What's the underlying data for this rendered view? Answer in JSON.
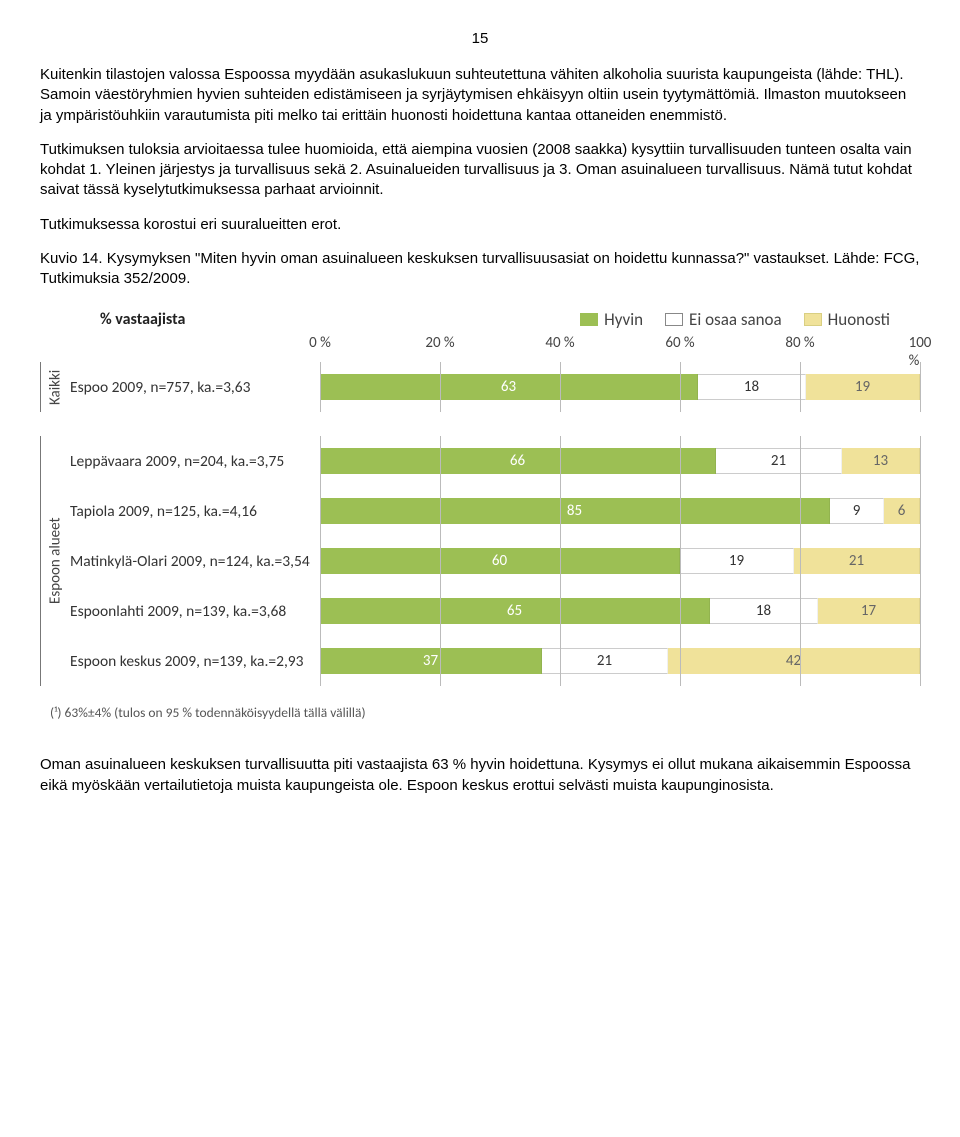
{
  "page_number": "15",
  "paragraphs": {
    "p1": "Kuitenkin tilastojen valossa Espoossa myydään asukaslukuun suhteutettuna vähiten alkoholia suurista kaupungeista (lähde: THL). Samoin väestöryhmien hyvien suhteiden edistämiseen ja syrjäytymisen ehkäisyyn oltiin usein tyytymättömiä. Ilmaston muutokseen ja ympäristöuhkiin varautumista piti melko tai erittäin huonosti hoidettuna kantaa ottaneiden enemmistö.",
    "p2": "Tutkimuksen tuloksia arvioitaessa tulee huomioida, että aiempina vuosien (2008 saakka) kysyttiin turvallisuuden tunteen osalta vain kohdat 1. Yleinen järjestys ja turvallisuus sekä 2. Asuinalueiden turvallisuus ja 3. Oman asuinalueen turvallisuus. Nämä tutut kohdat saivat tässä kyselytutkimuksessa parhaat arvioinnit.",
    "p3": "Tutkimuksessa korostui eri suuralueitten erot.",
    "p4": "Kuvio 14. Kysymyksen \"Miten hyvin oman asuinalueen keskuksen turvallisuusasiat on hoidettu kunnassa?\" vastaukset. Lähde: FCG, Tutkimuksia 352/2009.",
    "p5": "Oman asuinalueen keskuksen turvallisuutta piti vastaajista 63 % hyvin hoidettuna. Kysymys ei ollut mukana aikaisemmin Espoossa eikä myöskään vertailutietoja muista kaupungeista ole. Espoon keskus erottui selvästi muista kaupunginosista."
  },
  "chart": {
    "type": "stacked-bar-horizontal",
    "pct_label": "% vastaajista",
    "legend": {
      "hyvin": "Hyvin",
      "eos": "Ei osaa sanoa",
      "huonosti": "Huonosti"
    },
    "colors": {
      "hyvin": "#9cbf54",
      "eos": "#ffffff",
      "huonosti": "#f0e29a",
      "hyvin_text": "#ffffff",
      "eos_text": "#333333",
      "huon_text": "#666666",
      "grid": "#bbbbbb",
      "axis_text": "#444444"
    },
    "xlim": [
      0,
      100
    ],
    "xtick_step": 20,
    "xticks": [
      "0 %",
      "20 %",
      "40 %",
      "60 %",
      "80 %",
      "100 %"
    ],
    "groups": [
      {
        "label": "Kaikki",
        "rows": [
          {
            "label": "Espoo 2009, n=757, ka.=3,63",
            "hyvin": 63,
            "eos": 18,
            "huonosti": 19
          }
        ]
      },
      {
        "label": "Espoon alueet",
        "rows": [
          {
            "label": "Leppävaara 2009, n=204, ka.=3,75",
            "hyvin": 66,
            "eos": 21,
            "huonosti": 13
          },
          {
            "label": "Tapiola 2009, n=125, ka.=4,16",
            "hyvin": 85,
            "eos": 9,
            "huonosti": 6
          },
          {
            "label": "Matinkylä-Olari 2009, n=124, ka.=3,54",
            "hyvin": 60,
            "eos": 19,
            "huonosti": 21
          },
          {
            "label": "Espoonlahti 2009, n=139, ka.=3,68",
            "hyvin": 65,
            "eos": 18,
            "huonosti": 17
          },
          {
            "label": "Espoon keskus 2009, n=139, ka.=2,93",
            "hyvin": 37,
            "eos": 21,
            "huonosti": 42
          }
        ]
      }
    ],
    "footnote": "(¹) 63%±4% (tulos on 95 % todennäköisyydellä tällä välillä)"
  }
}
